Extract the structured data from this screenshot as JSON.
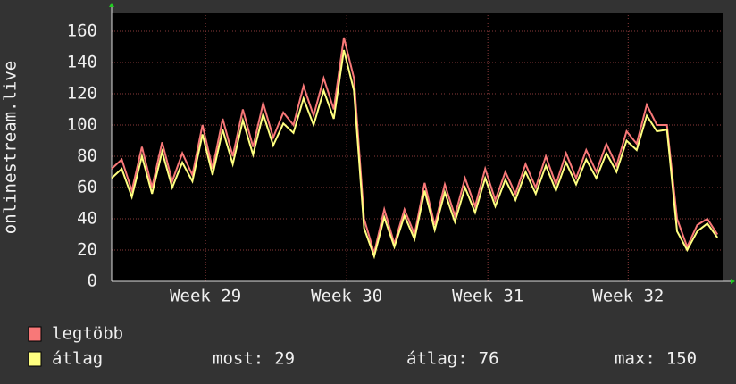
{
  "chart_data": {
    "type": "line",
    "y_label": "onlinestream.live",
    "x": [
      0,
      0.5,
      1,
      1.5,
      2,
      2.5,
      3,
      3.5,
      4,
      4.5,
      5,
      5.5,
      6,
      6.5,
      7,
      7.5,
      8,
      8.5,
      9,
      9.5,
      10,
      10.5,
      11,
      11.5,
      12,
      12.5,
      13,
      13.5,
      14,
      14.5,
      15,
      15.5,
      16,
      16.5,
      17,
      17.5,
      18,
      18.5,
      19,
      19.5,
      20,
      20.5,
      21,
      21.5,
      22,
      22.5,
      23,
      23.5,
      24,
      24.5,
      25,
      25.5,
      26,
      26.5,
      27,
      27.5,
      28,
      28.5,
      29,
      29.5,
      30
    ],
    "series": [
      {
        "name": "legtöbb",
        "color": "#f87878",
        "values": [
          72,
          78,
          58,
          86,
          60,
          89,
          64,
          82,
          68,
          100,
          72,
          104,
          80,
          110,
          86,
          114,
          92,
          108,
          100,
          125,
          106,
          130,
          110,
          156,
          130,
          40,
          18,
          46,
          24,
          46,
          30,
          63,
          36,
          62,
          42,
          66,
          48,
          72,
          52,
          70,
          56,
          75,
          60,
          80,
          62,
          82,
          66,
          84,
          70,
          88,
          74,
          96,
          88,
          113,
          100,
          100,
          40,
          22,
          36,
          40,
          30
        ]
      },
      {
        "name": "átlag",
        "color": "#ffff80",
        "values": [
          66,
          72,
          54,
          80,
          56,
          83,
          60,
          76,
          64,
          94,
          68,
          97,
          75,
          103,
          81,
          107,
          87,
          101,
          95,
          117,
          100,
          122,
          104,
          148,
          122,
          34,
          16,
          41,
          22,
          42,
          27,
          58,
          33,
          57,
          38,
          60,
          44,
          66,
          48,
          65,
          52,
          70,
          56,
          74,
          58,
          76,
          62,
          78,
          66,
          82,
          70,
          90,
          84,
          106,
          96,
          97,
          32,
          20,
          32,
          37,
          28
        ]
      }
    ],
    "xlim": [
      0,
      30.3
    ],
    "xticks": [
      {
        "value": 4.65,
        "label": "Week 29"
      },
      {
        "value": 11.64,
        "label": "Week 30"
      },
      {
        "value": 18.63,
        "label": "Week 31"
      },
      {
        "value": 25.58,
        "label": "Week 32"
      }
    ],
    "ylim": [
      0,
      172
    ],
    "yticks": [
      0,
      20,
      40,
      60,
      80,
      100,
      120,
      140,
      160
    ],
    "grid": true,
    "stats": [
      {
        "label": "most:",
        "value": 29
      },
      {
        "label": "átlag:",
        "value": 76
      },
      {
        "label": "max:",
        "value": 150
      }
    ]
  }
}
